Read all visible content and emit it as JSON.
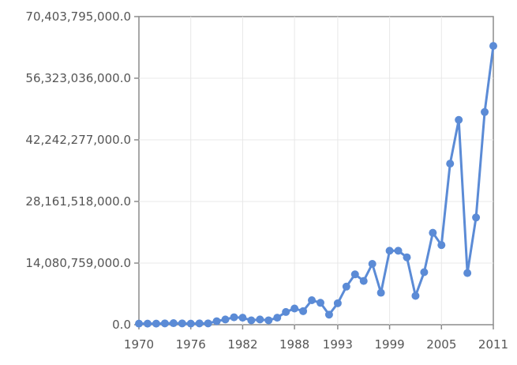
{
  "chart_data": {
    "type": "line",
    "title": "",
    "xlabel": "",
    "ylabel": "",
    "xlim": [
      1970,
      2011
    ],
    "ylim": [
      0,
      70403795000
    ],
    "x_ticks": [
      "1970",
      "1976",
      "1982",
      "1988",
      "1993",
      "1999",
      "2005",
      "2011"
    ],
    "y_ticks": [
      "0.0",
      "14,080,759,000.0",
      "28,161,518,000.0",
      "42,242,277,000.0",
      "56,323,036,000.0",
      "70,403,795,000.0"
    ],
    "grid": true,
    "legend": "none",
    "series_color": "#5b8bd6",
    "series": [
      {
        "x": [
          1970,
          1971,
          1972,
          1973,
          1974,
          1975,
          1976,
          1977,
          1978,
          1979,
          1980,
          1981,
          1982,
          1983,
          1984,
          1985,
          1986,
          1987,
          1988,
          1989,
          1990,
          1991,
          1992,
          1993,
          1994,
          1995,
          1996,
          1997,
          1998,
          1999,
          2000,
          2001,
          2002,
          2003,
          2004,
          2005,
          2006,
          2007,
          2008,
          2009,
          2010,
          2011
        ],
        "values": [
          250000000,
          250000000,
          250000000,
          300000000,
          350000000,
          300000000,
          250000000,
          300000000,
          300000000,
          800000000,
          1200000000,
          1700000000,
          1600000000,
          1000000000,
          1200000000,
          1000000000,
          1600000000,
          2900000000,
          3700000000,
          3100000000,
          5600000000,
          5000000000,
          2300000000,
          4900000000,
          8700000000,
          11500000000,
          10000000000,
          13900000000,
          7300000000,
          16900000000,
          16900000000,
          15400000000,
          6600000000,
          12000000000,
          21000000000,
          18200000000,
          36800000000,
          46800000000,
          11800000000,
          24500000000,
          48600000000,
          63700000000
        ]
      }
    ]
  }
}
